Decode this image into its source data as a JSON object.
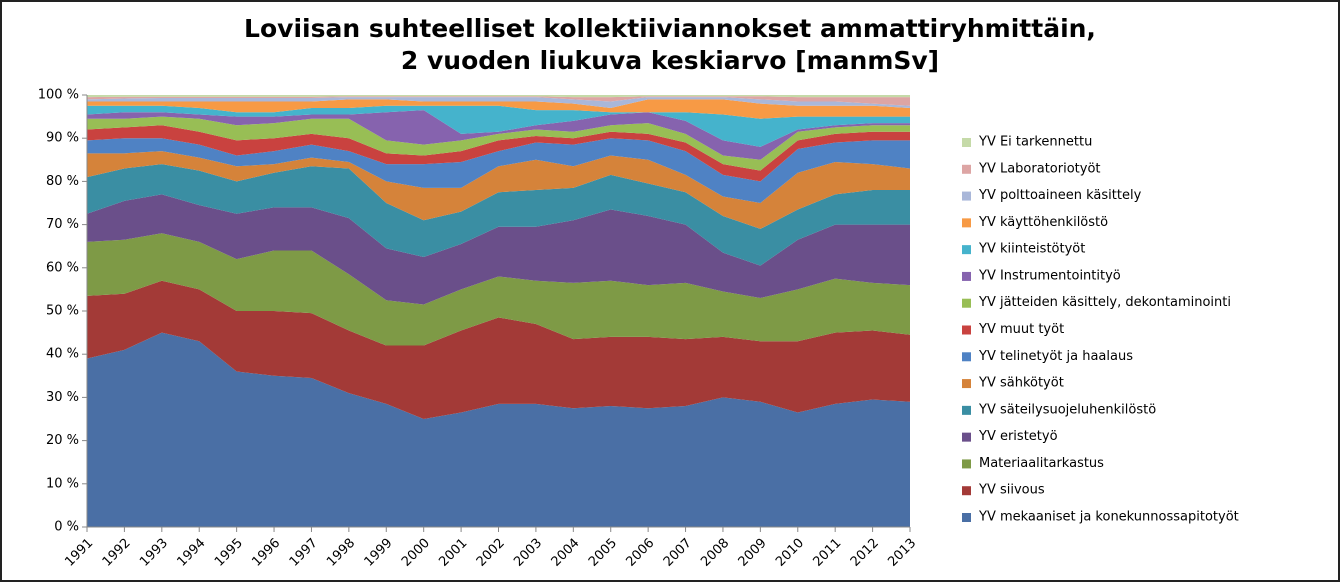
{
  "chart_data": {
    "type": "stacked-area",
    "title": [
      "Loviisan suhteelliset kollektiiviannokset ammattiryhmittäin,",
      "2 vuoden liukuva keskiarvo [manmSv]"
    ],
    "categories": [
      "1991",
      "1992",
      "1993",
      "1994",
      "1995",
      "1996",
      "1997",
      "1998",
      "1999",
      "2000",
      "2001",
      "2002",
      "2003",
      "2004",
      "2005",
      "2006",
      "2007",
      "2008",
      "2009",
      "2010",
      "2011",
      "2012",
      "2013"
    ],
    "ylim": [
      0,
      100
    ],
    "yticks": [
      {
        "value": 0,
        "label": "0 %"
      },
      {
        "value": 10,
        "label": "10 %"
      },
      {
        "value": 20,
        "label": "20 %"
      },
      {
        "value": 30,
        "label": "30 %"
      },
      {
        "value": 40,
        "label": "40 %"
      },
      {
        "value": 50,
        "label": "50 %"
      },
      {
        "value": 60,
        "label": "60 %"
      },
      {
        "value": 70,
        "label": "70 %"
      },
      {
        "value": 80,
        "label": "80 %"
      },
      {
        "value": 90,
        "label": "90 %"
      },
      {
        "value": 100,
        "label": "100 %"
      }
    ],
    "grid": false,
    "legend": "right",
    "series": [
      {
        "name": "YV mekaaniset ja konekunnossapitotyöt",
        "color": "#4A6FA5",
        "values": [
          39,
          41,
          45,
          43,
          36,
          35,
          34.5,
          31,
          28.5,
          25,
          26.5,
          28.5,
          28.5,
          27.5,
          28,
          27.5,
          28,
          30,
          29,
          26.5,
          28.5,
          29.5,
          29
        ]
      },
      {
        "name": "YV siivous",
        "color": "#A33A37",
        "values": [
          14.5,
          13,
          12,
          12,
          14,
          15,
          15,
          14.5,
          13.5,
          17,
          19,
          20,
          18.5,
          16,
          16,
          16.5,
          15.5,
          14,
          14,
          16.5,
          16.5,
          16,
          15.5
        ]
      },
      {
        "name": "Materiaalitarkastus",
        "color": "#7E9A46",
        "values": [
          12.5,
          12.5,
          11,
          11,
          12,
          14,
          14.5,
          13,
          10.5,
          9.5,
          9.5,
          9.5,
          10,
          13,
          13,
          12,
          13,
          10.5,
          10,
          12,
          12.5,
          11,
          11.5
        ]
      },
      {
        "name": "YV eristetyö",
        "color": "#6A4F8A",
        "values": [
          6.5,
          9,
          9,
          8.5,
          10.5,
          10,
          10,
          13,
          12,
          11,
          10.5,
          11.5,
          12.5,
          14.5,
          16.5,
          16,
          13.5,
          9,
          7.5,
          11.5,
          12.5,
          13.5,
          14
        ]
      },
      {
        "name": "YV säteilysuojeluhenkilöstö",
        "color": "#3A8EA3",
        "values": [
          8.5,
          7.5,
          7,
          8,
          7.5,
          8,
          9.5,
          11.5,
          10.5,
          8.5,
          7.5,
          8,
          8.5,
          7.5,
          8,
          7.5,
          7.5,
          8.5,
          8.5,
          7,
          7,
          8,
          8
        ]
      },
      {
        "name": "YV sähkötyöt",
        "color": "#D5833A",
        "values": [
          5.5,
          3.5,
          3,
          3,
          3.5,
          2,
          2,
          1.5,
          5,
          7.5,
          5.5,
          6,
          7,
          5,
          4.5,
          5.5,
          4,
          4.5,
          6,
          8.5,
          7.5,
          6,
          5
        ]
      },
      {
        "name": "YV telinetyöt ja haalaus",
        "color": "#4F82C4",
        "values": [
          3,
          3.5,
          3,
          3,
          2.5,
          3,
          3,
          2.5,
          4,
          5.5,
          6,
          3.5,
          4,
          5,
          4,
          4.5,
          5.5,
          5,
          5,
          5.5,
          4.5,
          5.5,
          6.5
        ]
      },
      {
        "name": "YV muut työt",
        "color": "#C9423F",
        "values": [
          2.5,
          2.5,
          3,
          3,
          3.5,
          3,
          2.5,
          3,
          2.5,
          2,
          2.5,
          2.5,
          1.5,
          1.5,
          1.5,
          1.5,
          2,
          2.5,
          2.5,
          2,
          2,
          2,
          2
        ]
      },
      {
        "name": "YV jätteiden käsittely, dekontaminointi",
        "color": "#98BE55",
        "values": [
          2.5,
          2,
          2,
          3,
          3.5,
          3.5,
          3.5,
          4.5,
          3,
          2.5,
          2.5,
          1.5,
          1.5,
          1.5,
          1.5,
          2.5,
          2,
          2,
          2.5,
          2,
          1.5,
          1.5,
          1.5
        ]
      },
      {
        "name": "YV Instrumentointityö",
        "color": "#8663AE",
        "values": [
          1,
          1.5,
          1,
          1,
          2,
          1.5,
          1,
          1,
          6.5,
          8,
          1.5,
          0.5,
          1,
          2.5,
          2.5,
          2.5,
          3,
          3.5,
          3,
          0.5,
          0.5,
          0.5,
          0.5
        ]
      },
      {
        "name": "YV kiinteistötyöt",
        "color": "#45B3CC",
        "values": [
          2,
          1.5,
          1.5,
          1.5,
          1,
          1,
          1.5,
          1.5,
          1.5,
          1,
          6.5,
          6,
          3.5,
          2.5,
          0.5,
          0,
          2,
          6,
          6.5,
          3,
          2,
          1.5,
          1.5
        ]
      },
      {
        "name": "YV käyttöhenkilöstö",
        "color": "#F79A45",
        "values": [
          1,
          1,
          1,
          1.5,
          2.5,
          2.5,
          1.5,
          2,
          1.5,
          1,
          1,
          1,
          2,
          1.5,
          1,
          3,
          3,
          3.5,
          3.5,
          2.5,
          2.5,
          2.5,
          2
        ]
      },
      {
        "name": "YV polttoaineen käsittely",
        "color": "#A9B7D9",
        "values": [
          0.5,
          0.7,
          0.8,
          0.8,
          0.8,
          0.8,
          0.8,
          0.5,
          0.5,
          1,
          1,
          1,
          1,
          1,
          1.5,
          0.5,
          0.5,
          0.5,
          1,
          1,
          1,
          0.5,
          0.5
        ]
      },
      {
        "name": "YV Laboratoriotyöt",
        "color": "#DDA5A4",
        "values": [
          0.5,
          0.4,
          0.3,
          0.3,
          0.3,
          0.3,
          0.3,
          0.2,
          0.2,
          0.2,
          0.2,
          0.2,
          0.2,
          0.5,
          1,
          0.2,
          0.2,
          0.2,
          0.7,
          1,
          1,
          1.5,
          2
        ]
      },
      {
        "name": "YV Ei tarkennettu",
        "color": "#C5DAA8",
        "values": [
          0.5,
          0.4,
          0.4,
          0.4,
          0.4,
          0.4,
          0.4,
          0.3,
          0.3,
          0.3,
          0.3,
          0.3,
          0.3,
          0.5,
          0.5,
          0.3,
          0.3,
          0.3,
          0.3,
          0.5,
          0.5,
          0.5,
          0.5
        ]
      }
    ]
  }
}
